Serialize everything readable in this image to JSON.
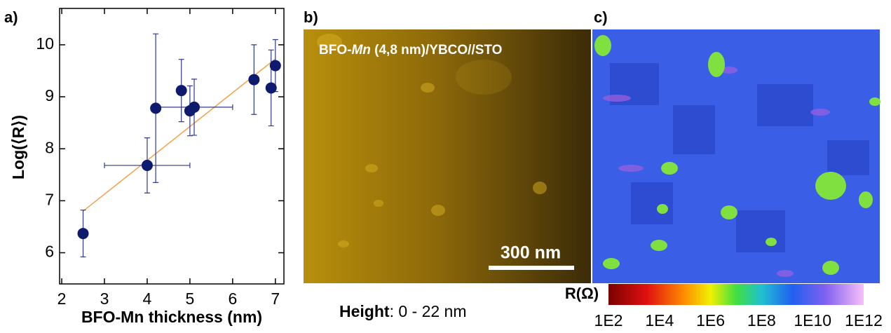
{
  "chart_data": {
    "type": "scatter",
    "label": "a)",
    "x_label": "BFO-Mn thickness (nm)",
    "y_label": "Log(⟨R⟩)",
    "color": "#0d1a6e",
    "error_color": "#2e3a8c",
    "x": [
      2.5,
      4.0,
      4.2,
      4.8,
      5.0,
      5.1,
      6.5,
      6.9,
      7.0
    ],
    "values": [
      6.37,
      7.68,
      8.78,
      9.12,
      8.73,
      8.8,
      9.33,
      9.17,
      9.6
    ],
    "y_errors": [
      0.45,
      0.53,
      1.43,
      0.6,
      0.48,
      0.54,
      0.67,
      0.73,
      0.5
    ],
    "x_errors": [
      null,
      1.0,
      null,
      null,
      null,
      0.9,
      null,
      null,
      null
    ],
    "fit_line": {
      "x": [
        2.5,
        7.0
      ],
      "values": [
        6.8,
        9.73
      ],
      "color": "#f5a04a"
    },
    "xlim": [
      1.95,
      7.2
    ],
    "ylim": [
      5.4,
      10.7
    ],
    "xticks": [
      2,
      3,
      4,
      5,
      6,
      7
    ],
    "yticks": [
      6,
      7,
      8,
      9,
      10
    ]
  },
  "panel_b": {
    "label": "b)",
    "title_parts": [
      "BFO-",
      "Mn",
      " (4,8 nm)/YBCO//STO"
    ],
    "scale_bar": "300 nm",
    "caption_bold": "Height",
    "caption_rest": ": 0 - 22 nm"
  },
  "panel_c": {
    "label": "c)",
    "colorbar_label": "R(Ω)",
    "colorbar_ticks": [
      "1E2",
      "1E4",
      "1E6",
      "1E8",
      "1E10",
      "1E12"
    ]
  }
}
